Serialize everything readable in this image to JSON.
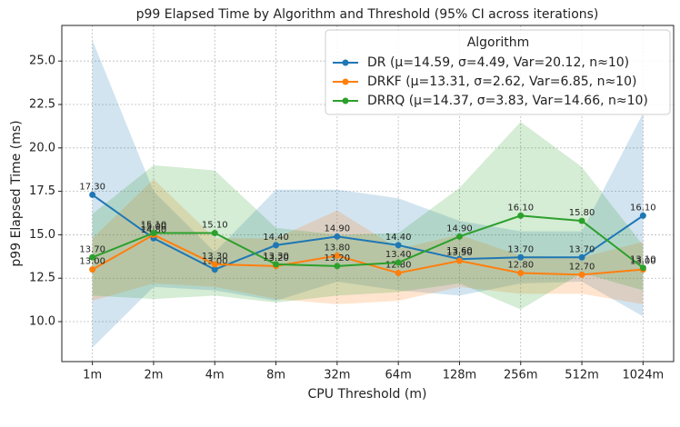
{
  "chart_data": {
    "type": "line",
    "title": "p99 Elapsed Time by Algorithm and Threshold (95% CI across iterations)",
    "x_label": "CPU Threshold (m)",
    "y_label": "p99 Elapsed Time (ms)",
    "categories": [
      "1m",
      "2m",
      "4m",
      "8m",
      "32m",
      "64m",
      "128m",
      "256m",
      "512m",
      "1024m"
    ],
    "ylim": [
      7.7,
      27.05
    ],
    "yticks": [
      {
        "value": 10,
        "label": "10.0"
      },
      12.5,
      {
        "value": 15,
        "label": "15.0"
      },
      17.5,
      {
        "value": 20,
        "label": "20.0"
      },
      22.5,
      {
        "value": 25,
        "label": "25.0"
      }
    ],
    "grid": true,
    "legend_title": "Algorithm",
    "legend_position": "upper right",
    "series": [
      {
        "name": "DR (μ=14.59, σ=4.49, Var=20.12, n≈10)",
        "color": "#1f77b4",
        "values": [
          17.3,
          14.8,
          13.0,
          14.4,
          14.9,
          14.4,
          13.6,
          13.7,
          13.7,
          16.1
        ],
        "value_labels": [
          "17.30",
          "14.80",
          "13.00",
          "14.40",
          "14.90",
          "14.40",
          "13.60",
          "13.70",
          "13.70",
          "16.10"
        ],
        "ci_lower": [
          8.5,
          12.0,
          11.8,
          11.2,
          12.3,
          11.8,
          11.5,
          12.2,
          12.3,
          10.3
        ],
        "ci_upper": [
          26.2,
          17.5,
          14.0,
          17.6,
          17.6,
          17.1,
          15.8,
          15.2,
          15.2,
          22.0
        ]
      },
      {
        "name": "DRKF (μ=13.31, σ=2.62, Var=6.85, n≈10)",
        "color": "#ff7f0e",
        "values": [
          13.0,
          15.0,
          13.3,
          13.2,
          13.8,
          12.8,
          13.5,
          12.8,
          12.7,
          13.0
        ],
        "value_labels": [
          "13.00",
          "15.00",
          "13.30",
          "13.20",
          "13.80",
          "12.80",
          "13.50",
          "12.80",
          "12.70",
          "13.00"
        ],
        "ci_lower": [
          11.2,
          12.2,
          12.0,
          11.3,
          11.0,
          11.2,
          12.0,
          11.6,
          11.6,
          11.0
        ],
        "ci_upper": [
          14.8,
          18.2,
          14.8,
          14.8,
          16.4,
          14.2,
          15.0,
          13.8,
          13.7,
          14.6
        ]
      },
      {
        "name": "DRRQ (μ=14.37, σ=3.83, Var=14.66, n≈10)",
        "color": "#2ca02c",
        "values": [
          13.7,
          15.1,
          15.1,
          13.3,
          13.2,
          13.4,
          14.9,
          16.1,
          15.8,
          13.1
        ],
        "value_labels": [
          "13.70",
          "15.10",
          "15.10",
          "13.30",
          "13.20",
          "13.40",
          "14.90",
          "16.10",
          "15.80",
          "13.10"
        ],
        "ci_lower": [
          11.5,
          11.3,
          11.5,
          11.1,
          11.5,
          11.7,
          12.2,
          10.7,
          12.8,
          11.8
        ],
        "ci_upper": [
          16.2,
          19.0,
          18.7,
          15.4,
          15.0,
          15.1,
          17.7,
          21.5,
          18.9,
          14.4
        ]
      }
    ]
  }
}
